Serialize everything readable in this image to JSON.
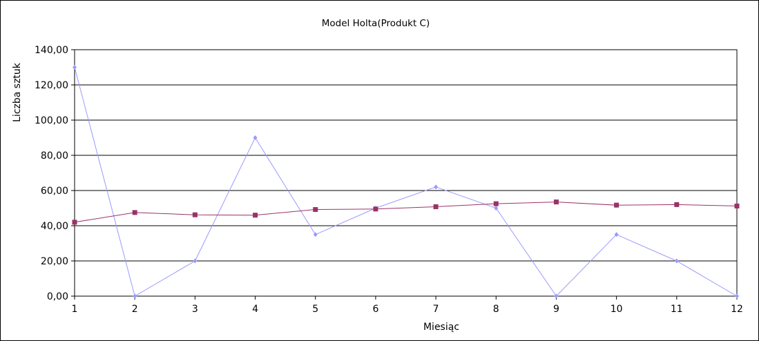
{
  "chart_data": {
    "type": "line",
    "title": "Model Holta(Produkt C)",
    "xlabel": "Miesiąc",
    "ylabel": "Liczba sztuk",
    "x": [
      "1",
      "2",
      "3",
      "4",
      "5",
      "6",
      "7",
      "8",
      "9",
      "10",
      "11",
      "12"
    ],
    "y_ticks": [
      "0,00",
      "20,00",
      "40,00",
      "60,00",
      "80,00",
      "100,00",
      "120,00",
      "140,00"
    ],
    "ylim": [
      0,
      140
    ],
    "grid": true,
    "legend": "none",
    "series": [
      {
        "values": [
          130,
          0,
          20,
          90,
          35,
          50,
          62,
          50,
          0,
          35,
          20,
          0
        ],
        "color": "#9999ff",
        "marker": "diamond"
      },
      {
        "values": [
          42,
          47.5,
          46.2,
          46,
          49.2,
          49.5,
          50.8,
          52.5,
          53.5,
          51.7,
          52,
          51.2
        ],
        "color": "#993366",
        "marker": "square"
      }
    ]
  }
}
